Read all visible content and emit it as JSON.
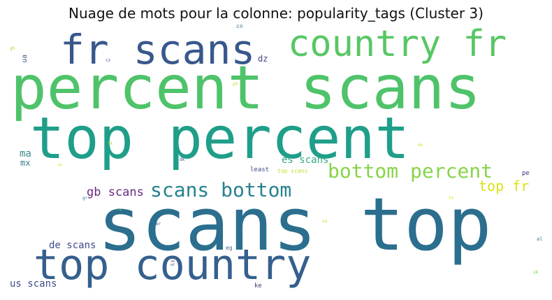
{
  "title": "Nuage de mots pour la colonne: popularity_tags (Cluster 3)",
  "words": [
    {
      "text": "percent scans",
      "color": "#4fc36a"
    },
    {
      "text": "scans top",
      "color": "#2b6e8e"
    },
    {
      "text": "top percent",
      "color": "#1f9e89"
    },
    {
      "text": "top country",
      "color": "#355f8d"
    },
    {
      "text": "fr scans",
      "color": "#38588c"
    },
    {
      "text": "country fr",
      "color": "#58c765"
    },
    {
      "text": "bottom percent",
      "color": "#86d549"
    },
    {
      "text": "scans bottom",
      "color": "#26828e"
    },
    {
      "text": "top fr",
      "color": "#dde318"
    },
    {
      "text": "gb scans",
      "color": "#6a2b80"
    },
    {
      "text": "es scans",
      "color": "#33a883"
    },
    {
      "text": "de scans",
      "color": "#3e4a89"
    },
    {
      "text": "us scans",
      "color": "#3f4e8a"
    },
    {
      "text": "ma",
      "color": "#3b8a8c"
    },
    {
      "text": "mx",
      "color": "#3a7f8e"
    },
    {
      "text": "dz",
      "color": "#3f4b8a"
    },
    {
      "text": "ua",
      "color": "#3b5a8c"
    },
    {
      "text": "cn",
      "color": "#3b6a8d"
    },
    {
      "text": "least",
      "color": "#414487"
    },
    {
      "text": "top scans",
      "color": "#c2df23"
    },
    {
      "text": "pe",
      "color": "#472f7d"
    },
    {
      "text": "ke",
      "color": "#46307e"
    },
    {
      "text": "eg",
      "color": "#3f6c8e"
    },
    {
      "text": "dk",
      "color": "#3e4c8a"
    },
    {
      "text": "br",
      "color": "#3b528b"
    },
    {
      "text": "gr",
      "color": "#2a788e"
    },
    {
      "text": "cz",
      "color": "#3b4d8a"
    },
    {
      "text": "ph",
      "color": "#b5de2b"
    },
    {
      "text": "gh",
      "color": "#a2da37"
    },
    {
      "text": "en",
      "color": "#cce11e"
    },
    {
      "text": "tn",
      "color": "#d5e21a"
    },
    {
      "text": "lk",
      "color": "#94d840"
    },
    {
      "text": "za",
      "color": "#bddf26"
    },
    {
      "text": "al",
      "color": "#2c728e"
    },
    {
      "text": "sk",
      "color": "#75d054"
    },
    {
      "text": "au",
      "color": "#cfe11c"
    },
    {
      "text": "se",
      "color": "#3e4c8a"
    },
    {
      "text": "at",
      "color": "#3d4e8a"
    },
    {
      "text": "ly",
      "color": "#84d44b"
    }
  ]
}
